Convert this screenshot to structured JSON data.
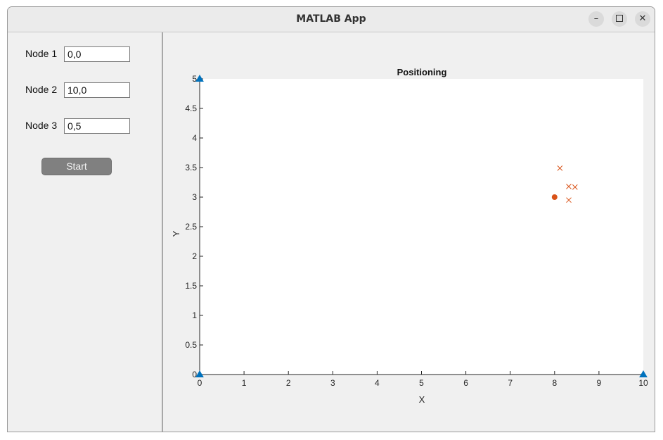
{
  "window": {
    "title": "MATLAB App",
    "controls": {
      "minimize": "minimize-icon",
      "maximize": "maximize-icon",
      "close": "close-icon"
    }
  },
  "nodes": [
    {
      "label": "Node 1",
      "value": "0,0"
    },
    {
      "label": "Node 2",
      "value": "10,0"
    },
    {
      "label": "Node 3",
      "value": "0,5"
    }
  ],
  "start_button": "Start",
  "chart_data": {
    "type": "scatter",
    "title": "Positioning",
    "xlabel": "X",
    "ylabel": "Y",
    "xlim": [
      0,
      10
    ],
    "ylim": [
      0,
      5
    ],
    "xticks": [
      "0",
      "1",
      "2",
      "3",
      "4",
      "5",
      "6",
      "7",
      "8",
      "9",
      "10"
    ],
    "yticks": [
      "0",
      "0.5",
      "1",
      "1.5",
      "2",
      "2.5",
      "3",
      "3.5",
      "4",
      "4.5",
      "5"
    ],
    "grid": false,
    "series": [
      {
        "marker": "triangle",
        "color": "#0072BD",
        "points": [
          [
            0,
            0
          ],
          [
            10,
            0
          ],
          [
            0,
            5
          ]
        ]
      },
      {
        "marker": "x",
        "color": "#D95319",
        "points": [
          [
            8.12,
            3.49
          ],
          [
            8.32,
            3.18
          ],
          [
            8.46,
            3.17
          ],
          [
            8.32,
            2.95
          ]
        ]
      },
      {
        "marker": "circle",
        "color": "#D95319",
        "points": [
          [
            8.0,
            3.0
          ]
        ]
      }
    ]
  }
}
